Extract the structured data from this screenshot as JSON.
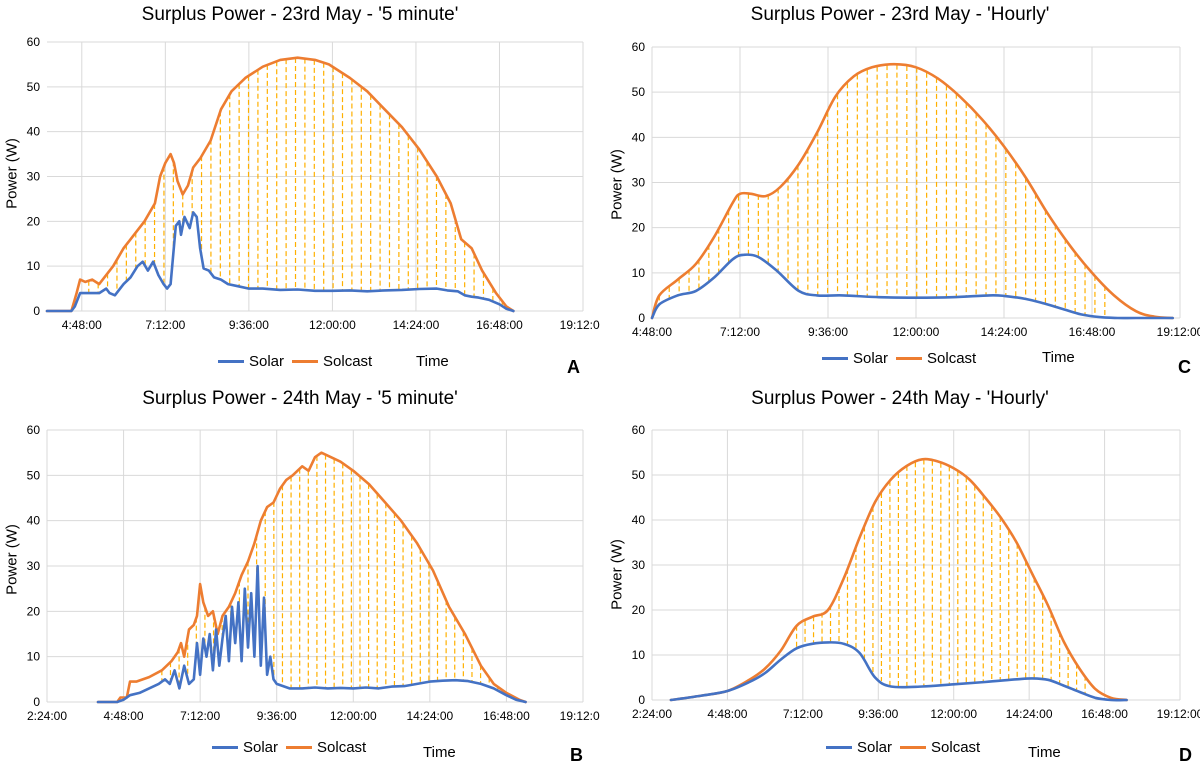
{
  "colors": {
    "solar": "#4472C4",
    "solcast": "#ED7D31",
    "hatch": "#FFB000",
    "grid": "#D9D9D9"
  },
  "chart_data": [
    {
      "id": "A",
      "panel_label": "A",
      "type": "line",
      "title": "Surplus Power - 23rd May - '5 minute'",
      "xlabel": "Time",
      "ylabel": "Power (W)",
      "ylim": [
        0,
        60
      ],
      "yticks": [
        0,
        10,
        20,
        30,
        40,
        50,
        60
      ],
      "xlim_hours": [
        3.8,
        19.2
      ],
      "xticks": [
        {
          "h": 4.8,
          "label": "4:48:00"
        },
        {
          "h": 7.2,
          "label": "7:12:00"
        },
        {
          "h": 9.6,
          "label": "9:36:00"
        },
        {
          "h": 12.0,
          "label": "12:00:00"
        },
        {
          "h": 14.4,
          "label": "14:24:00"
        },
        {
          "h": 16.8,
          "label": "16:48:00"
        },
        {
          "h": 19.2,
          "label": "19:12:00"
        }
      ],
      "hatch_from": 5.0,
      "hatch_to": 16.9,
      "hatch_step": 0.27,
      "series": [
        {
          "name": "Solar",
          "key": "solar",
          "smooth": false,
          "x": [
            3.8,
            4.5,
            4.6,
            4.75,
            5.0,
            5.3,
            5.5,
            5.6,
            5.75,
            6.0,
            6.2,
            6.4,
            6.55,
            6.7,
            6.85,
            7.0,
            7.15,
            7.25,
            7.35,
            7.5,
            7.6,
            7.65,
            7.75,
            7.9,
            8.0,
            8.1,
            8.2,
            8.3,
            8.45,
            8.6,
            8.8,
            9.0,
            9.3,
            9.6,
            10.0,
            10.5,
            11.0,
            11.5,
            12.0,
            12.5,
            13.0,
            13.5,
            14.0,
            14.5,
            15.0,
            15.3,
            15.6,
            15.8,
            16.0,
            16.2,
            16.5,
            16.8,
            17.0,
            17.2
          ],
          "y": [
            0,
            0,
            1,
            4,
            4,
            4,
            5,
            4,
            3.5,
            6,
            7.5,
            10,
            11,
            9,
            11,
            8,
            6,
            5,
            6,
            19,
            20,
            17,
            21,
            18.5,
            22,
            21,
            14,
            9.5,
            9,
            7.5,
            7,
            6,
            5.5,
            5,
            5,
            4.7,
            4.8,
            4.5,
            4.5,
            4.6,
            4.4,
            4.6,
            4.7,
            4.9,
            5,
            4.6,
            4.4,
            3.5,
            3.2,
            3,
            2.5,
            1.5,
            0.5,
            0
          ]
        },
        {
          "name": "Solcast",
          "key": "solcast",
          "smooth": false,
          "x": [
            3.8,
            4.5,
            4.65,
            4.75,
            4.9,
            5.1,
            5.3,
            5.5,
            5.7,
            6.0,
            6.3,
            6.6,
            6.9,
            7.05,
            7.2,
            7.35,
            7.45,
            7.55,
            7.7,
            7.85,
            8.0,
            8.2,
            8.5,
            8.8,
            9.1,
            9.5,
            10.0,
            10.5,
            11.0,
            11.5,
            11.9,
            12.5,
            13.0,
            13.5,
            14.0,
            14.5,
            15.0,
            15.4,
            15.7,
            16.0,
            16.3,
            16.7,
            17.0,
            17.2
          ],
          "y": [
            0,
            0,
            4,
            7,
            6.5,
            7,
            6,
            8,
            10,
            14,
            17,
            20,
            24,
            30,
            33,
            35,
            33,
            29,
            26,
            28,
            32,
            34,
            38,
            45,
            49,
            52,
            54.5,
            56,
            56.5,
            56,
            55,
            52,
            49,
            45,
            41,
            36,
            30,
            24,
            16,
            14,
            9,
            4,
            1,
            0
          ]
        }
      ]
    },
    {
      "id": "C",
      "panel_label": "C",
      "type": "line",
      "title": "Surplus Power - 23rd May - 'Hourly'",
      "xlabel": "Time",
      "ylabel": "Power (W)",
      "ylim": [
        0,
        60
      ],
      "yticks": [
        0,
        10,
        20,
        30,
        40,
        50,
        60
      ],
      "xlim_hours": [
        4.8,
        19.2
      ],
      "xticks": [
        {
          "h": 4.8,
          "label": "4:48:00"
        },
        {
          "h": 7.2,
          "label": "7:12:00"
        },
        {
          "h": 9.6,
          "label": "9:36:00"
        },
        {
          "h": 12.0,
          "label": "12:00:00"
        },
        {
          "h": 14.4,
          "label": "14:24:00"
        },
        {
          "h": 16.8,
          "label": "16:48:00"
        },
        {
          "h": 19.2,
          "label": "19:12:00"
        }
      ],
      "hatch_from": 5.0,
      "hatch_to": 17.4,
      "hatch_step": 0.27,
      "series": [
        {
          "name": "Solar",
          "key": "solar",
          "smooth": true,
          "x": [
            4.8,
            5.0,
            5.5,
            6.0,
            6.5,
            7.0,
            7.3,
            7.7,
            8.2,
            8.8,
            9.3,
            10.0,
            11.0,
            12.0,
            13.0,
            14.0,
            14.4,
            15.0,
            15.5,
            16.0,
            16.5,
            17.0,
            17.5,
            18.0,
            19.0
          ],
          "y": [
            0,
            3,
            5,
            6,
            9,
            13,
            14,
            13.5,
            10.5,
            6,
            5,
            5,
            4.6,
            4.5,
            4.6,
            5,
            4.9,
            4.2,
            3.2,
            2,
            0.8,
            0.2,
            0,
            0,
            0
          ]
        },
        {
          "name": "Solcast",
          "key": "solcast",
          "smooth": true,
          "x": [
            4.8,
            5.0,
            5.5,
            6.0,
            6.5,
            7.0,
            7.2,
            7.5,
            7.9,
            8.3,
            8.8,
            9.3,
            9.8,
            10.3,
            10.8,
            11.4,
            12.0,
            12.6,
            13.2,
            13.8,
            14.4,
            15.0,
            15.6,
            16.2,
            16.8,
            17.4,
            18.0,
            18.5,
            19.0
          ],
          "y": [
            0,
            5,
            8.5,
            12,
            18,
            25.5,
            27.5,
            27.5,
            27,
            29,
            34,
            41,
            49,
            53.5,
            55.5,
            56.2,
            55.5,
            53,
            49,
            44,
            38,
            31,
            23,
            16,
            10,
            5,
            1.5,
            0.3,
            0
          ]
        }
      ]
    },
    {
      "id": "B",
      "panel_label": "B",
      "type": "line",
      "title": "Surplus Power - 24th May - '5 minute'",
      "xlabel": "Time",
      "ylabel": "Power (W)",
      "ylim": [
        0,
        60
      ],
      "yticks": [
        0,
        10,
        20,
        30,
        40,
        50,
        60
      ],
      "xlim_hours": [
        2.4,
        19.2
      ],
      "xticks": [
        {
          "h": 2.4,
          "label": "2:24:00"
        },
        {
          "h": 4.8,
          "label": "4:48:00"
        },
        {
          "h": 7.2,
          "label": "7:12:00"
        },
        {
          "h": 9.6,
          "label": "9:36:00"
        },
        {
          "h": 12.0,
          "label": "12:00:00"
        },
        {
          "h": 14.4,
          "label": "14:24:00"
        },
        {
          "h": 16.8,
          "label": "16:48:00"
        },
        {
          "h": 19.2,
          "label": "19:12:00"
        }
      ],
      "hatch_from": 6.0,
      "hatch_to": 16.8,
      "hatch_step": 0.27,
      "series": [
        {
          "name": "Solar",
          "key": "solar",
          "smooth": false,
          "x": [
            4.0,
            4.6,
            4.8,
            5.0,
            5.3,
            5.6,
            5.9,
            6.1,
            6.25,
            6.4,
            6.55,
            6.7,
            6.85,
            7.0,
            7.1,
            7.2,
            7.3,
            7.4,
            7.5,
            7.6,
            7.7,
            7.8,
            7.9,
            8.0,
            8.1,
            8.2,
            8.3,
            8.4,
            8.5,
            8.6,
            8.7,
            8.8,
            8.9,
            9.0,
            9.1,
            9.2,
            9.3,
            9.4,
            9.5,
            9.6,
            9.8,
            10.0,
            10.4,
            10.8,
            11.2,
            11.6,
            12.0,
            12.4,
            12.8,
            13.2,
            13.6,
            14.0,
            14.4,
            14.8,
            15.2,
            15.6,
            16.0,
            16.4,
            16.8,
            17.1,
            17.4
          ],
          "y": [
            0,
            0,
            0.5,
            1.5,
            2,
            3,
            4,
            5,
            4,
            7,
            3,
            8,
            4,
            5,
            13,
            6,
            14,
            10,
            15,
            7,
            16,
            8,
            14,
            19,
            9,
            21,
            13,
            22,
            9,
            25,
            12,
            24,
            10,
            30,
            8,
            23,
            6,
            10,
            5,
            4,
            3.5,
            3,
            3,
            3.2,
            3,
            3.1,
            3,
            3.2,
            3,
            3.4,
            3.5,
            4,
            4.5,
            4.7,
            4.8,
            4.6,
            4,
            3,
            1.5,
            0.5,
            0
          ]
        },
        {
          "name": "Solcast",
          "key": "solcast",
          "smooth": false,
          "x": [
            4.0,
            4.6,
            4.7,
            4.9,
            5.0,
            5.2,
            5.6,
            6.0,
            6.3,
            6.5,
            6.6,
            6.7,
            6.85,
            7.0,
            7.1,
            7.2,
            7.3,
            7.45,
            7.6,
            7.75,
            7.9,
            8.1,
            8.3,
            8.5,
            8.7,
            8.9,
            9.1,
            9.3,
            9.5,
            9.7,
            9.9,
            10.1,
            10.4,
            10.6,
            10.8,
            11.0,
            11.3,
            11.6,
            12.0,
            12.5,
            13.0,
            13.5,
            14.0,
            14.5,
            15.0,
            15.5,
            16.0,
            16.4,
            16.8,
            17.2,
            17.4
          ],
          "y": [
            0,
            0,
            1,
            1,
            4.5,
            4.5,
            5.5,
            7,
            9,
            11,
            13,
            10,
            16,
            17,
            19,
            26,
            22,
            19,
            20,
            15,
            19,
            21,
            24,
            28,
            31,
            35,
            40,
            43,
            44,
            47,
            49,
            50,
            52,
            51,
            54,
            55,
            54,
            53,
            51,
            48,
            44,
            40,
            35,
            29,
            21,
            15,
            8,
            4,
            2,
            0.5,
            0
          ]
        }
      ]
    },
    {
      "id": "D",
      "panel_label": "D",
      "type": "line",
      "title": "Surplus Power - 24th May - 'Hourly'",
      "xlabel": "Time",
      "ylabel": "Power (W)",
      "ylim": [
        0,
        60
      ],
      "yticks": [
        0,
        10,
        20,
        30,
        40,
        50,
        60
      ],
      "xlim_hours": [
        2.4,
        19.2
      ],
      "xticks": [
        {
          "h": 2.4,
          "label": "2:24:00"
        },
        {
          "h": 4.8,
          "label": "4:48:00"
        },
        {
          "h": 7.2,
          "label": "7:12:00"
        },
        {
          "h": 9.6,
          "label": "9:36:00"
        },
        {
          "h": 12.0,
          "label": "12:00:00"
        },
        {
          "h": 14.4,
          "label": "14:24:00"
        },
        {
          "h": 16.8,
          "label": "16:48:00"
        },
        {
          "h": 19.2,
          "label": "19:12:00"
        }
      ],
      "hatch_from": 7.0,
      "hatch_to": 16.4,
      "hatch_step": 0.27,
      "series": [
        {
          "name": "Solar",
          "key": "solar",
          "smooth": true,
          "x": [
            3.0,
            4.0,
            4.8,
            5.5,
            6.0,
            6.5,
            7.0,
            7.5,
            8.0,
            8.5,
            9.0,
            9.5,
            10.0,
            11.0,
            12.0,
            13.0,
            14.0,
            14.5,
            15.0,
            15.5,
            16.0,
            16.5,
            17.0,
            17.5
          ],
          "y": [
            0,
            1,
            2,
            4,
            6,
            9,
            11.5,
            12.5,
            12.8,
            12.5,
            10.5,
            5,
            3,
            3,
            3.5,
            4,
            4.6,
            4.8,
            4.5,
            3.2,
            1.8,
            0.5,
            0,
            0
          ]
        },
        {
          "name": "Solcast",
          "key": "solcast",
          "smooth": true,
          "x": [
            3.0,
            4.0,
            4.8,
            5.5,
            6.0,
            6.5,
            7.0,
            7.5,
            8.0,
            8.5,
            9.0,
            9.5,
            10.0,
            10.5,
            11.0,
            11.5,
            12.0,
            12.5,
            13.0,
            13.5,
            14.0,
            14.5,
            15.0,
            15.5,
            16.0,
            16.5,
            17.0,
            17.5
          ],
          "y": [
            0,
            1,
            2,
            4.5,
            7,
            11,
            16.5,
            18.5,
            20,
            27,
            36,
            44,
            49,
            52,
            53.5,
            53,
            51.5,
            49,
            45,
            40.5,
            35,
            28,
            21,
            13,
            7,
            2.5,
            0.5,
            0
          ]
        }
      ]
    }
  ]
}
